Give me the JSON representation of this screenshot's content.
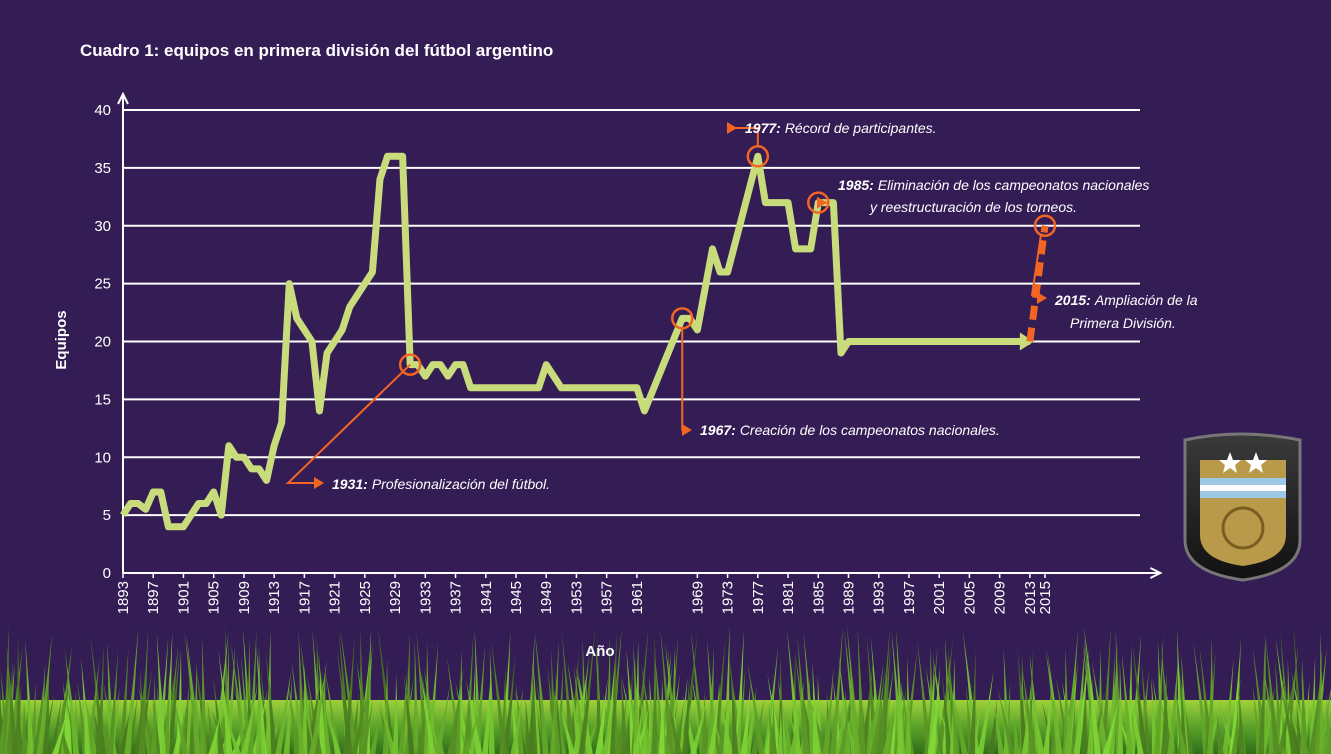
{
  "chart_data": {
    "type": "line",
    "title": "Cuadro 1: equipos en primera división del fútbol argentino",
    "xlabel": "Año",
    "ylabel": "Equipos",
    "series": [
      {
        "color": "#c9dc7c",
        "dashed": false,
        "x": [
          1893,
          1894,
          1895,
          1896,
          1897,
          1898,
          1899,
          1900,
          1901,
          1902,
          1903,
          1904,
          1905,
          1906,
          1907,
          1908,
          1909,
          1910,
          1911,
          1912,
          1913,
          1914,
          1915,
          1916,
          1917,
          1918,
          1919,
          1920,
          1921,
          1922,
          1923,
          1924,
          1925,
          1926,
          1927,
          1928,
          1929,
          1930,
          1931,
          1932,
          1933,
          1934,
          1935,
          1936,
          1937,
          1938,
          1939,
          1948,
          1949,
          1951,
          1961,
          1962,
          1967,
          1968,
          1969,
          1971,
          1972,
          1973,
          1977,
          1978,
          1981,
          1982,
          1984,
          1985,
          1986,
          1987,
          1988,
          1989,
          2013
        ],
        "values": [
          5,
          6,
          6,
          5.5,
          7,
          7,
          4,
          4,
          4,
          5,
          6,
          6,
          7,
          5,
          11,
          10,
          10,
          9,
          9,
          8,
          11,
          13,
          25,
          22,
          21,
          20,
          14,
          19,
          20,
          21,
          23,
          24,
          25,
          26,
          34,
          36,
          36,
          36,
          18,
          18,
          17,
          18,
          18,
          17,
          18,
          18,
          16,
          16,
          18,
          16,
          16,
          14,
          22,
          22,
          21,
          28,
          26,
          26,
          36,
          32,
          32,
          28,
          28,
          32,
          32,
          32,
          19,
          20,
          20
        ]
      },
      {
        "color": "#f26522",
        "dashed": true,
        "x": [
          2013,
          2015
        ],
        "values": [
          20,
          30
        ]
      }
    ],
    "xlim": [
      1893,
      2030
    ],
    "ylim": [
      0,
      40
    ],
    "xticks": [
      1893,
      1897,
      1901,
      1905,
      1909,
      1913,
      1917,
      1921,
      1925,
      1929,
      1933,
      1937,
      1941,
      1945,
      1949,
      1953,
      1957,
      1961,
      1969,
      1973,
      1977,
      1981,
      1985,
      1989,
      1993,
      1997,
      2001,
      2005,
      2009,
      2013,
      2015
    ],
    "yticks": [
      0,
      5,
      10,
      15,
      20,
      25,
      30,
      35,
      40
    ],
    "grid": true,
    "annotation_color": "#f26522",
    "annotations": [
      {
        "label": "1931:",
        "lines": [
          "Profesionalización del fútbol."
        ]
      },
      {
        "label": "1967:",
        "lines": [
          "Creación de los campeonatos nacionales."
        ]
      },
      {
        "label": "1977:",
        "lines": [
          "Récord de participantes."
        ]
      },
      {
        "label": "1985:",
        "lines": [
          "Eliminación de los campeonatos nacionales",
          "y reestructuración de los torneos."
        ]
      },
      {
        "label": "2015:",
        "lines": [
          "Ampliación de la",
          "Primera División."
        ]
      }
    ]
  }
}
